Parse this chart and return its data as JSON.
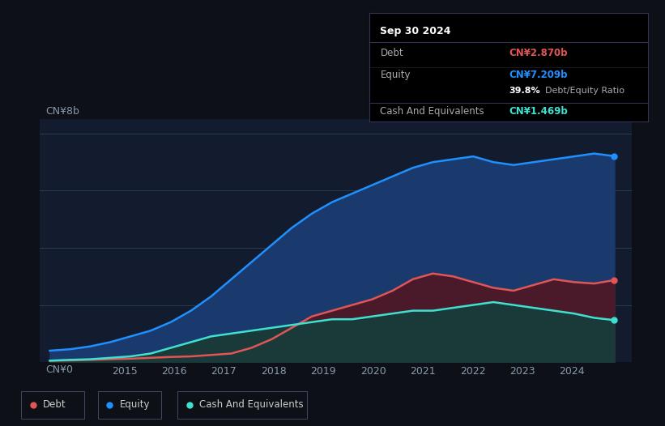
{
  "bg_color": "#0d1117",
  "plot_bg_color": "#131c2e",
  "ylabel_text": "CN¥8b",
  "y0_text": "CN¥0",
  "xlabel_ticks": [
    2015,
    2016,
    2017,
    2018,
    2019,
    2020,
    2021,
    2022,
    2023,
    2024
  ],
  "equity_color": "#1e90ff",
  "debt_color": "#e05555",
  "cash_color": "#40e0d0",
  "equity_fill": "#1a3a6e",
  "debt_fill": "#4a1a2a",
  "cash_fill": "#1a3a3a",
  "tooltip": {
    "date": "Sep 30 2024",
    "debt_label": "Debt",
    "debt_value": "CN¥2.870b",
    "equity_label": "Equity",
    "equity_value": "CN¥7.209b",
    "ratio_value": "39.8%",
    "ratio_label": "Debt/Equity Ratio",
    "cash_label": "Cash And Equivalents",
    "cash_value": "CN¥1.469b"
  },
  "equity_data": [
    0.4,
    0.45,
    0.55,
    0.7,
    0.9,
    1.1,
    1.4,
    1.8,
    2.3,
    2.9,
    3.5,
    4.1,
    4.7,
    5.2,
    5.6,
    5.9,
    6.2,
    6.5,
    6.8,
    7.0,
    7.1,
    7.2,
    7.0,
    6.9,
    7.0,
    7.1,
    7.2,
    7.3,
    7.209
  ],
  "debt_data": [
    0.05,
    0.06,
    0.08,
    0.1,
    0.12,
    0.15,
    0.18,
    0.2,
    0.25,
    0.3,
    0.5,
    0.8,
    1.2,
    1.6,
    1.8,
    2.0,
    2.2,
    2.5,
    2.9,
    3.1,
    3.0,
    2.8,
    2.6,
    2.5,
    2.7,
    2.9,
    2.8,
    2.75,
    2.87
  ],
  "cash_data": [
    0.05,
    0.08,
    0.1,
    0.15,
    0.2,
    0.3,
    0.5,
    0.7,
    0.9,
    1.0,
    1.1,
    1.2,
    1.3,
    1.4,
    1.5,
    1.5,
    1.6,
    1.7,
    1.8,
    1.8,
    1.9,
    2.0,
    2.1,
    2.0,
    1.9,
    1.8,
    1.7,
    1.55,
    1.469
  ],
  "ylim": [
    0,
    8.5
  ],
  "legend": [
    {
      "label": "Debt",
      "color": "#e05555"
    },
    {
      "label": "Equity",
      "color": "#1e90ff"
    },
    {
      "label": "Cash And Equivalents",
      "color": "#40e0d0"
    }
  ]
}
